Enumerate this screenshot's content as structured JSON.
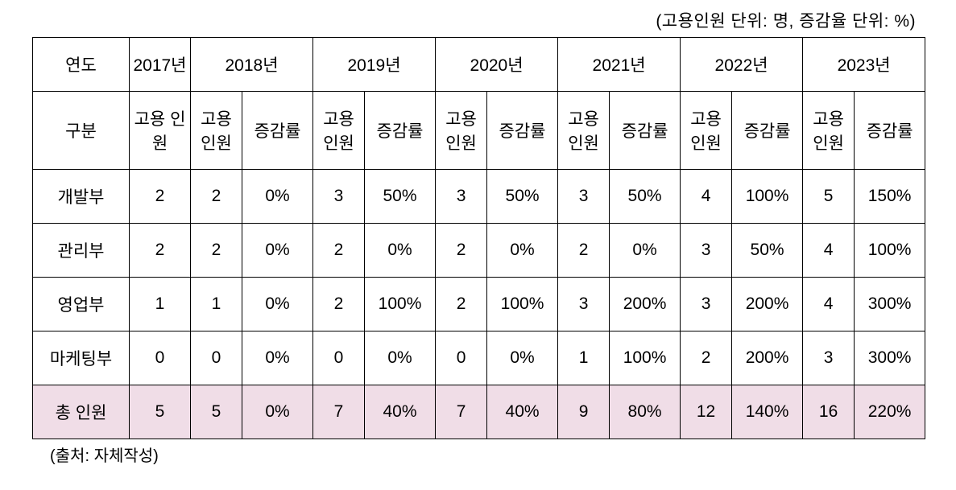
{
  "unit_note": "(고용인원 단위: 명, 증감율 단위: %)",
  "source": "(출처: 자체작성)",
  "head": {
    "year_label": "연도",
    "category_label": "구분",
    "employees_label": "고용\n인원",
    "rate_label": "증감률",
    "years": [
      "2017년",
      "2018년",
      "2019년",
      "2020년",
      "2021년",
      "2022년",
      "2023년"
    ]
  },
  "rows": [
    {
      "label": "개발부",
      "y2017": "2",
      "cells": [
        [
          "2",
          "0%"
        ],
        [
          "3",
          "50%"
        ],
        [
          "3",
          "50%"
        ],
        [
          "3",
          "50%"
        ],
        [
          "4",
          "100%"
        ],
        [
          "5",
          "150%"
        ]
      ]
    },
    {
      "label": "관리부",
      "y2017": "2",
      "cells": [
        [
          "2",
          "0%"
        ],
        [
          "2",
          "0%"
        ],
        [
          "2",
          "0%"
        ],
        [
          "2",
          "0%"
        ],
        [
          "3",
          "50%"
        ],
        [
          "4",
          "100%"
        ]
      ]
    },
    {
      "label": "영업부",
      "y2017": "1",
      "cells": [
        [
          "1",
          "0%"
        ],
        [
          "2",
          "100%"
        ],
        [
          "2",
          "100%"
        ],
        [
          "3",
          "200%"
        ],
        [
          "3",
          "200%"
        ],
        [
          "4",
          "300%"
        ]
      ]
    },
    {
      "label": "마케팅부",
      "y2017": "0",
      "cells": [
        [
          "0",
          "0%"
        ],
        [
          "0",
          "0%"
        ],
        [
          "0",
          "0%"
        ],
        [
          "1",
          "100%"
        ],
        [
          "2",
          "200%"
        ],
        [
          "3",
          "300%"
        ]
      ]
    }
  ],
  "total": {
    "label": "총 인원",
    "y2017": "5",
    "cells": [
      [
        "5",
        "0%"
      ],
      [
        "7",
        "40%"
      ],
      [
        "7",
        "40%"
      ],
      [
        "9",
        "80%"
      ],
      [
        "12",
        "140%"
      ],
      [
        "16",
        "220%"
      ]
    ]
  },
  "style": {
    "total_row_bg": "#f0dde7",
    "border_color": "#000000",
    "font_size_pt": 16
  }
}
